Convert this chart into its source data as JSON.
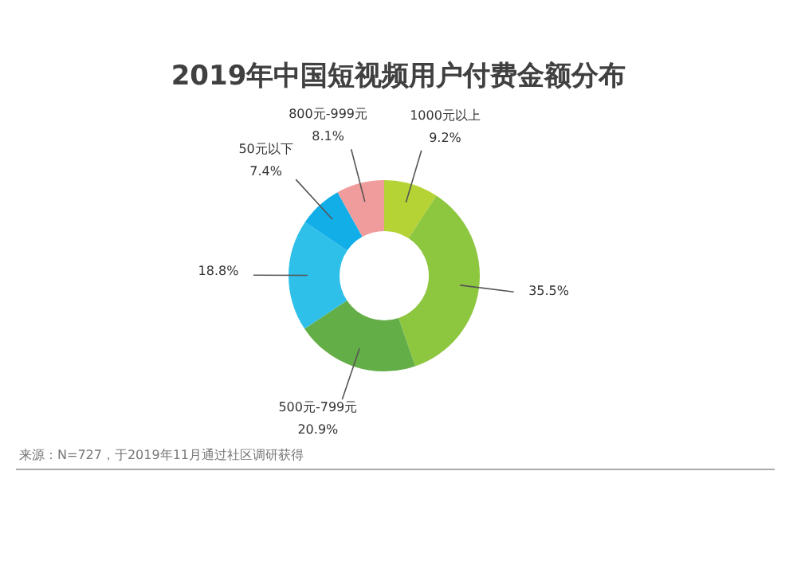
{
  "chart_data": {
    "type": "donut",
    "title": "2019年中国短视频用户付费金额分布",
    "categories": [
      "1000元以上",
      null,
      "500元-799元",
      null,
      "50元以下",
      "800元-999元"
    ],
    "values": [
      9.2,
      35.5,
      20.9,
      18.8,
      7.4,
      8.1
    ],
    "colors": [
      "#b5d334",
      "#8dc63f",
      "#64ae47",
      "#2fc0ea",
      "#12aee8",
      "#f19c9c"
    ],
    "value_labels": [
      "9.2%",
      "35.5%",
      "20.9%",
      "18.8%",
      "7.4%",
      "8.1%"
    ],
    "annotations": [
      "来源：N=727，于2019年11月通过社区调研获得"
    ]
  }
}
